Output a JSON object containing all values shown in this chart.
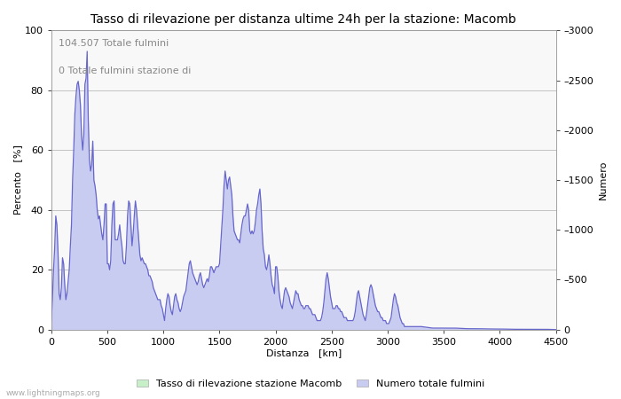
{
  "title": "Tasso di rilevazione per distanza ultime 24h per la stazione: Macomb",
  "xlabel": "Distanza   [km]",
  "ylabel_left": "Percento   [%]",
  "ylabel_right": "Numero",
  "annotation_line1": "104.507 Totale fulmini",
  "annotation_line2": "0 Totale fulmini stazione di",
  "xlim": [
    0,
    4500
  ],
  "ylim_left": [
    0,
    100
  ],
  "ylim_right": [
    0,
    3000
  ],
  "xticks": [
    0,
    500,
    1000,
    1500,
    2000,
    2500,
    3000,
    3500,
    4000,
    4500
  ],
  "yticks_left": [
    0,
    20,
    40,
    60,
    80,
    100
  ],
  "yticks_right": [
    0,
    500,
    1000,
    1500,
    2000,
    2500,
    3000
  ],
  "fill_color_detection": "#c8f0c8",
  "fill_color_total": "#c8ccf0",
  "line_color": "#6666cc",
  "line_width": 0.9,
  "background_color": "#f8f8f8",
  "grid_color": "#bbbbbb",
  "watermark": "www.lightningmaps.org",
  "legend_label_1": "Tasso di rilevazione stazione Macomb",
  "legend_label_2": "Numero totale fulmini",
  "title_fontsize": 10,
  "axis_label_fontsize": 8,
  "tick_fontsize": 8,
  "annotation_fontsize": 8,
  "annotation_color": "#888888"
}
